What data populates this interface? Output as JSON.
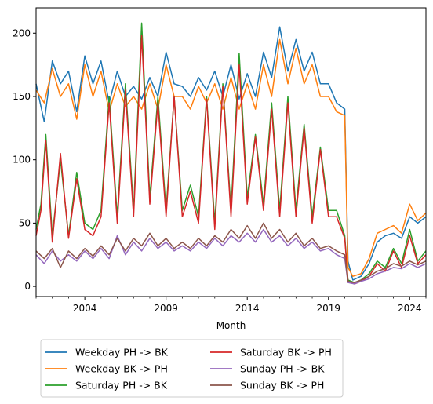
{
  "chart_data": {
    "type": "line",
    "title": "",
    "xlabel": "Month",
    "ylabel": "",
    "x_range": [
      2001.0,
      2025.0
    ],
    "ylim": [
      -8,
      220
    ],
    "x_ticks": [
      2004,
      2009,
      2014,
      2019,
      2024
    ],
    "y_ticks": [
      0,
      50,
      100,
      150,
      200
    ],
    "grid": false,
    "legend_position": "below-center",
    "series": [
      {
        "name": "Weekday PH -> BK",
        "color": "#1f77b4",
        "points": [
          [
            2001.0,
            160
          ],
          [
            2001.5,
            130
          ],
          [
            2002.0,
            178
          ],
          [
            2002.5,
            160
          ],
          [
            2003.0,
            170
          ],
          [
            2003.5,
            138
          ],
          [
            2004.0,
            182
          ],
          [
            2004.5,
            160
          ],
          [
            2005.0,
            178
          ],
          [
            2005.5,
            145
          ],
          [
            2006.0,
            170
          ],
          [
            2006.5,
            150
          ],
          [
            2007.0,
            158
          ],
          [
            2007.5,
            148
          ],
          [
            2008.0,
            165
          ],
          [
            2008.5,
            150
          ],
          [
            2009.0,
            185
          ],
          [
            2009.5,
            160
          ],
          [
            2010.0,
            158
          ],
          [
            2010.5,
            150
          ],
          [
            2011.0,
            165
          ],
          [
            2011.5,
            155
          ],
          [
            2012.0,
            170
          ],
          [
            2012.5,
            150
          ],
          [
            2013.0,
            175
          ],
          [
            2013.5,
            148
          ],
          [
            2014.0,
            168
          ],
          [
            2014.5,
            150
          ],
          [
            2015.0,
            185
          ],
          [
            2015.5,
            165
          ],
          [
            2016.0,
            205
          ],
          [
            2016.5,
            170
          ],
          [
            2017.0,
            195
          ],
          [
            2017.5,
            170
          ],
          [
            2018.0,
            185
          ],
          [
            2018.5,
            160
          ],
          [
            2019.0,
            160
          ],
          [
            2019.5,
            145
          ],
          [
            2020.0,
            140
          ],
          [
            2020.2,
            20
          ],
          [
            2020.5,
            5
          ],
          [
            2021.0,
            8
          ],
          [
            2021.5,
            18
          ],
          [
            2022.0,
            35
          ],
          [
            2022.5,
            40
          ],
          [
            2023.0,
            42
          ],
          [
            2023.5,
            38
          ],
          [
            2024.0,
            55
          ],
          [
            2024.5,
            50
          ],
          [
            2025.0,
            55
          ]
        ]
      },
      {
        "name": "Weekday BK -> PH",
        "color": "#ff7f0e",
        "points": [
          [
            2001.0,
            155
          ],
          [
            2001.5,
            145
          ],
          [
            2002.0,
            172
          ],
          [
            2002.5,
            150
          ],
          [
            2003.0,
            160
          ],
          [
            2003.5,
            132
          ],
          [
            2004.0,
            175
          ],
          [
            2004.5,
            150
          ],
          [
            2005.0,
            170
          ],
          [
            2005.5,
            138
          ],
          [
            2006.0,
            160
          ],
          [
            2006.5,
            142
          ],
          [
            2007.0,
            150
          ],
          [
            2007.5,
            140
          ],
          [
            2008.0,
            160
          ],
          [
            2008.5,
            140
          ],
          [
            2009.0,
            175
          ],
          [
            2009.5,
            150
          ],
          [
            2010.0,
            150
          ],
          [
            2010.5,
            140
          ],
          [
            2011.0,
            158
          ],
          [
            2011.5,
            145
          ],
          [
            2012.0,
            160
          ],
          [
            2012.5,
            140
          ],
          [
            2013.0,
            165
          ],
          [
            2013.5,
            140
          ],
          [
            2014.0,
            160
          ],
          [
            2014.5,
            140
          ],
          [
            2015.0,
            175
          ],
          [
            2015.5,
            150
          ],
          [
            2016.0,
            195
          ],
          [
            2016.5,
            160
          ],
          [
            2017.0,
            188
          ],
          [
            2017.5,
            160
          ],
          [
            2018.0,
            175
          ],
          [
            2018.5,
            150
          ],
          [
            2019.0,
            150
          ],
          [
            2019.5,
            138
          ],
          [
            2020.0,
            135
          ],
          [
            2020.2,
            15
          ],
          [
            2020.5,
            8
          ],
          [
            2021.0,
            10
          ],
          [
            2021.5,
            22
          ],
          [
            2022.0,
            42
          ],
          [
            2022.5,
            45
          ],
          [
            2023.0,
            48
          ],
          [
            2023.5,
            42
          ],
          [
            2024.0,
            65
          ],
          [
            2024.5,
            52
          ],
          [
            2025.0,
            58
          ]
        ]
      },
      {
        "name": "Saturday PH -> BK",
        "color": "#2ca02c",
        "points": [
          [
            2001.0,
            45
          ],
          [
            2001.3,
            65
          ],
          [
            2001.6,
            120
          ],
          [
            2002.0,
            40
          ],
          [
            2002.5,
            100
          ],
          [
            2003.0,
            40
          ],
          [
            2003.5,
            90
          ],
          [
            2004.0,
            50
          ],
          [
            2004.5,
            45
          ],
          [
            2005.0,
            60
          ],
          [
            2005.5,
            150
          ],
          [
            2006.0,
            55
          ],
          [
            2006.5,
            160
          ],
          [
            2007.0,
            60
          ],
          [
            2007.5,
            208
          ],
          [
            2008.0,
            70
          ],
          [
            2008.5,
            150
          ],
          [
            2009.0,
            60
          ],
          [
            2009.5,
            150
          ],
          [
            2010.0,
            60
          ],
          [
            2010.5,
            80
          ],
          [
            2011.0,
            55
          ],
          [
            2011.5,
            150
          ],
          [
            2012.0,
            50
          ],
          [
            2012.5,
            160
          ],
          [
            2013.0,
            60
          ],
          [
            2013.5,
            184
          ],
          [
            2014.0,
            70
          ],
          [
            2014.5,
            120
          ],
          [
            2015.0,
            65
          ],
          [
            2015.5,
            145
          ],
          [
            2016.0,
            60
          ],
          [
            2016.5,
            150
          ],
          [
            2017.0,
            60
          ],
          [
            2017.5,
            128
          ],
          [
            2018.0,
            55
          ],
          [
            2018.5,
            110
          ],
          [
            2019.0,
            60
          ],
          [
            2019.5,
            60
          ],
          [
            2020.0,
            40
          ],
          [
            2020.2,
            5
          ],
          [
            2020.6,
            3
          ],
          [
            2021.0,
            5
          ],
          [
            2021.5,
            10
          ],
          [
            2022.0,
            20
          ],
          [
            2022.5,
            15
          ],
          [
            2023.0,
            30
          ],
          [
            2023.5,
            18
          ],
          [
            2024.0,
            45
          ],
          [
            2024.5,
            20
          ],
          [
            2025.0,
            28
          ]
        ]
      },
      {
        "name": "Saturday BK -> PH",
        "color": "#d62728",
        "points": [
          [
            2001.0,
            40
          ],
          [
            2001.3,
            60
          ],
          [
            2001.6,
            115
          ],
          [
            2002.0,
            35
          ],
          [
            2002.5,
            105
          ],
          [
            2003.0,
            38
          ],
          [
            2003.5,
            85
          ],
          [
            2004.0,
            45
          ],
          [
            2004.5,
            40
          ],
          [
            2005.0,
            55
          ],
          [
            2005.5,
            145
          ],
          [
            2006.0,
            50
          ],
          [
            2006.5,
            155
          ],
          [
            2007.0,
            55
          ],
          [
            2007.5,
            198
          ],
          [
            2008.0,
            65
          ],
          [
            2008.5,
            145
          ],
          [
            2009.0,
            55
          ],
          [
            2009.5,
            150
          ],
          [
            2010.0,
            55
          ],
          [
            2010.5,
            75
          ],
          [
            2011.0,
            50
          ],
          [
            2011.5,
            148
          ],
          [
            2012.0,
            45
          ],
          [
            2012.5,
            158
          ],
          [
            2013.0,
            55
          ],
          [
            2013.5,
            175
          ],
          [
            2014.0,
            65
          ],
          [
            2014.5,
            118
          ],
          [
            2015.0,
            60
          ],
          [
            2015.5,
            140
          ],
          [
            2016.0,
            55
          ],
          [
            2016.5,
            145
          ],
          [
            2017.0,
            55
          ],
          [
            2017.5,
            125
          ],
          [
            2018.0,
            50
          ],
          [
            2018.5,
            108
          ],
          [
            2019.0,
            55
          ],
          [
            2019.5,
            55
          ],
          [
            2020.0,
            38
          ],
          [
            2020.2,
            4
          ],
          [
            2020.6,
            2
          ],
          [
            2021.0,
            4
          ],
          [
            2021.5,
            8
          ],
          [
            2022.0,
            18
          ],
          [
            2022.5,
            12
          ],
          [
            2023.0,
            28
          ],
          [
            2023.5,
            15
          ],
          [
            2024.0,
            40
          ],
          [
            2024.5,
            18
          ],
          [
            2025.0,
            25
          ]
        ]
      },
      {
        "name": "Sunday PH -> BK",
        "color": "#9467bd",
        "points": [
          [
            2001.0,
            25
          ],
          [
            2001.5,
            18
          ],
          [
            2002.0,
            28
          ],
          [
            2002.5,
            20
          ],
          [
            2003.0,
            25
          ],
          [
            2003.5,
            20
          ],
          [
            2004.0,
            28
          ],
          [
            2004.5,
            22
          ],
          [
            2005.0,
            30
          ],
          [
            2005.5,
            22
          ],
          [
            2006.0,
            40
          ],
          [
            2006.5,
            25
          ],
          [
            2007.0,
            35
          ],
          [
            2007.5,
            28
          ],
          [
            2008.0,
            38
          ],
          [
            2008.5,
            30
          ],
          [
            2009.0,
            35
          ],
          [
            2009.5,
            28
          ],
          [
            2010.0,
            32
          ],
          [
            2010.5,
            28
          ],
          [
            2011.0,
            35
          ],
          [
            2011.5,
            30
          ],
          [
            2012.0,
            38
          ],
          [
            2012.5,
            32
          ],
          [
            2013.0,
            40
          ],
          [
            2013.5,
            35
          ],
          [
            2014.0,
            42
          ],
          [
            2014.5,
            35
          ],
          [
            2015.0,
            45
          ],
          [
            2015.5,
            35
          ],
          [
            2016.0,
            40
          ],
          [
            2016.5,
            32
          ],
          [
            2017.0,
            38
          ],
          [
            2017.5,
            30
          ],
          [
            2018.0,
            35
          ],
          [
            2018.5,
            28
          ],
          [
            2019.0,
            30
          ],
          [
            2019.5,
            25
          ],
          [
            2020.0,
            22
          ],
          [
            2020.2,
            3
          ],
          [
            2020.6,
            2
          ],
          [
            2021.0,
            4
          ],
          [
            2021.5,
            6
          ],
          [
            2022.0,
            10
          ],
          [
            2022.5,
            12
          ],
          [
            2023.0,
            15
          ],
          [
            2023.5,
            14
          ],
          [
            2024.0,
            18
          ],
          [
            2024.5,
            15
          ],
          [
            2025.0,
            18
          ]
        ]
      },
      {
        "name": "Sunday BK -> PH",
        "color": "#8c564b",
        "points": [
          [
            2001.0,
            28
          ],
          [
            2001.5,
            22
          ],
          [
            2002.0,
            30
          ],
          [
            2002.5,
            15
          ],
          [
            2003.0,
            28
          ],
          [
            2003.5,
            22
          ],
          [
            2004.0,
            30
          ],
          [
            2004.5,
            24
          ],
          [
            2005.0,
            32
          ],
          [
            2005.5,
            25
          ],
          [
            2006.0,
            38
          ],
          [
            2006.5,
            28
          ],
          [
            2007.0,
            38
          ],
          [
            2007.5,
            32
          ],
          [
            2008.0,
            42
          ],
          [
            2008.5,
            32
          ],
          [
            2009.0,
            38
          ],
          [
            2009.5,
            30
          ],
          [
            2010.0,
            35
          ],
          [
            2010.5,
            30
          ],
          [
            2011.0,
            38
          ],
          [
            2011.5,
            32
          ],
          [
            2012.0,
            40
          ],
          [
            2012.5,
            35
          ],
          [
            2013.0,
            45
          ],
          [
            2013.5,
            38
          ],
          [
            2014.0,
            48
          ],
          [
            2014.5,
            38
          ],
          [
            2015.0,
            50
          ],
          [
            2015.5,
            38
          ],
          [
            2016.0,
            45
          ],
          [
            2016.5,
            35
          ],
          [
            2017.0,
            42
          ],
          [
            2017.5,
            32
          ],
          [
            2018.0,
            38
          ],
          [
            2018.5,
            30
          ],
          [
            2019.0,
            32
          ],
          [
            2019.5,
            28
          ],
          [
            2020.0,
            25
          ],
          [
            2020.2,
            4
          ],
          [
            2020.6,
            3
          ],
          [
            2021.0,
            5
          ],
          [
            2021.5,
            8
          ],
          [
            2022.0,
            12
          ],
          [
            2022.5,
            14
          ],
          [
            2023.0,
            18
          ],
          [
            2023.5,
            16
          ],
          [
            2024.0,
            20
          ],
          [
            2024.5,
            17
          ],
          [
            2025.0,
            20
          ]
        ]
      }
    ]
  }
}
